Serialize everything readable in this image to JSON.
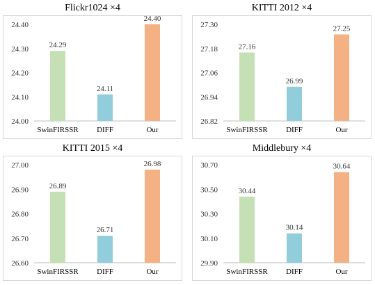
{
  "colors": {
    "SwinFIRSSR": "#c5e0b4",
    "DIFF": "#92cddc",
    "Our": "#f4b183"
  },
  "chart_data": [
    {
      "type": "bar",
      "title": "Flickr1024 ×4",
      "categories": [
        "SwinFIRSSR",
        "DIFF",
        "Our"
      ],
      "values": [
        24.29,
        24.11,
        24.4
      ],
      "value_labels": [
        "24.29",
        "24.11",
        "24.40"
      ],
      "ylim": [
        24.0,
        24.4
      ],
      "yticks": [
        "24.00",
        "24.10",
        "24.20",
        "24.30",
        "24.40"
      ],
      "xlabel": "",
      "ylabel": "",
      "grid": false
    },
    {
      "type": "bar",
      "title": "KITTI 2012 ×4",
      "categories": [
        "SwinFIRSSR",
        "DIFF",
        "Our"
      ],
      "values": [
        27.16,
        26.99,
        27.25
      ],
      "value_labels": [
        "27.16",
        "26.99",
        "27.25"
      ],
      "ylim": [
        26.82,
        27.3
      ],
      "yticks": [
        "26.82",
        "26.94",
        "27.06",
        "27.18",
        "27.30"
      ],
      "xlabel": "",
      "ylabel": "",
      "grid": false
    },
    {
      "type": "bar",
      "title": "KITTI 2015 ×4",
      "categories": [
        "SwinFIRSSR",
        "DIFF",
        "Our"
      ],
      "values": [
        26.89,
        26.71,
        26.98
      ],
      "value_labels": [
        "26.89",
        "26.71",
        "26.98"
      ],
      "ylim": [
        26.6,
        27.0
      ],
      "yticks": [
        "26.60",
        "26.70",
        "26.80",
        "26.90",
        "27.00"
      ],
      "xlabel": "",
      "ylabel": "",
      "grid": false
    },
    {
      "type": "bar",
      "title": "Middlebury ×4",
      "categories": [
        "SwinFIRSSR",
        "DIFF",
        "Our"
      ],
      "values": [
        30.44,
        30.14,
        30.64
      ],
      "value_labels": [
        "30.44",
        "30.14",
        "30.64"
      ],
      "ylim": [
        29.9,
        30.7
      ],
      "yticks": [
        "29.90",
        "30.10",
        "30.30",
        "30.50",
        "30.70"
      ],
      "xlabel": "",
      "ylabel": "",
      "grid": false
    }
  ]
}
